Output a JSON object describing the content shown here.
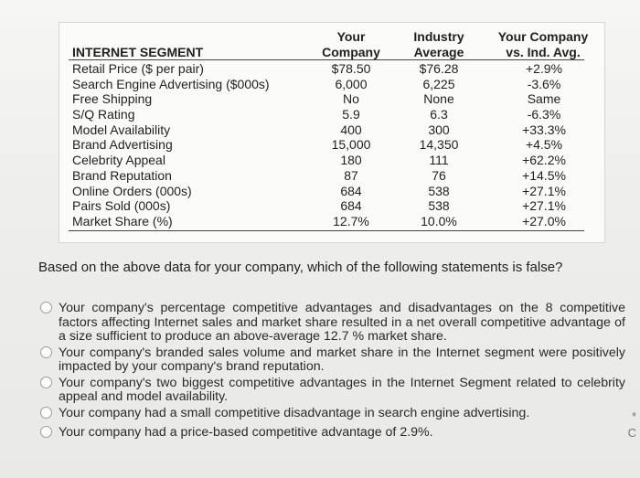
{
  "table": {
    "headers": {
      "segment": "INTERNET SEGMENT",
      "yours_line1": "Your",
      "yours_line2": "Company",
      "industry_line1": "Industry",
      "industry_line2": "Average",
      "vs_line1": "Your Company",
      "vs_line2": "vs. Ind. Avg."
    },
    "rows": [
      {
        "label": "Retail Price ($ per pair)",
        "yours": "$78.50",
        "industry": "$76.28",
        "vs": "+2.9%"
      },
      {
        "label": "Search Engine Advertising ($000s)",
        "yours": "6,000",
        "industry": "6,225",
        "vs": "-3.6%"
      },
      {
        "label": "Free Shipping",
        "yours": "No",
        "industry": "None",
        "vs": "Same"
      },
      {
        "label": "S/Q Rating",
        "yours": "5.9",
        "industry": "6.3",
        "vs": "-6.3%"
      },
      {
        "label": "Model Availability",
        "yours": "400",
        "industry": "300",
        "vs": "+33.3%"
      },
      {
        "label": "Brand Advertising",
        "yours": "15,000",
        "industry": "14,350",
        "vs": "+4.5%"
      },
      {
        "label": "Celebrity Appeal",
        "yours": "180",
        "industry": "111",
        "vs": "+62.2%"
      },
      {
        "label": "Brand Reputation",
        "yours": "87",
        "industry": "76",
        "vs": "+14.5%"
      },
      {
        "label": "Online Orders (000s)",
        "yours": "684",
        "industry": "538",
        "vs": "+27.1%"
      },
      {
        "label": "Pairs Sold (000s)",
        "yours": "684",
        "industry": "538",
        "vs": "+27.1%"
      },
      {
        "label": "Market Share (%)",
        "yours": "12.7%",
        "industry": "10.0%",
        "vs": "+27.0%"
      }
    ]
  },
  "question": "Based on the above data for your company, which of the following statements is false?",
  "options": [
    "Your company's percentage competitive advantages and disadvantages on the 8 competitive factors affecting Internet sales and market share resulted in a net overall competitive advantage of a size sufficient to produce an above-average 12.7 % market share.",
    "Your company's branded sales volume and market share in the Internet segment were positively impacted by your company's brand reputation.",
    "Your company's two biggest competitive advantages in the Internet Segment related to celebrity appeal and model availability.",
    "Your company had a small competitive disadvantage in search engine advertising.",
    "Your company had a price-based competitive advantage of 2.9%."
  ],
  "side_glyphs": [
    "*",
    "C"
  ]
}
